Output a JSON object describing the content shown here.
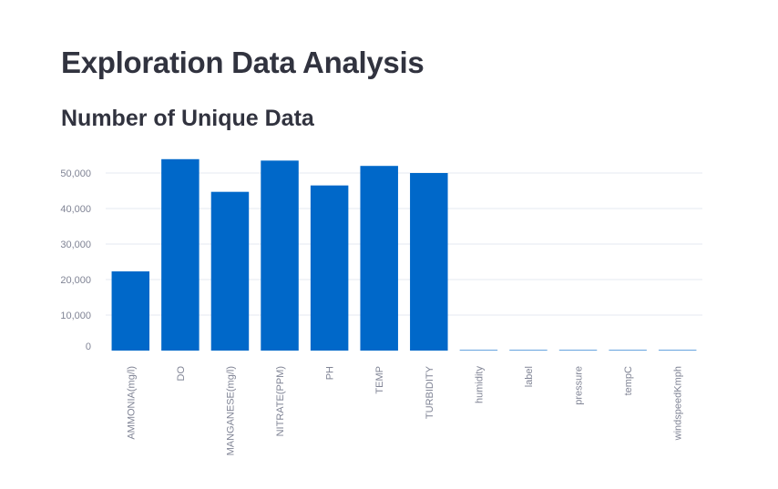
{
  "header": {
    "title": "Exploration Data Analysis",
    "subtitle": "Number of Unique Data"
  },
  "chart_data": {
    "type": "bar",
    "title": "",
    "xlabel": "",
    "ylabel": "",
    "categories": [
      "AMMONIA(mg/l)",
      "DO",
      "MANGANESE(mg/l)",
      "NITRATE(PPM)",
      "PH",
      "TEMP",
      "TURBIDITY",
      "humidity",
      "label",
      "pressure",
      "tempC",
      "windspeedKmph"
    ],
    "values": [
      22300,
      53900,
      44700,
      53500,
      46500,
      52000,
      50000,
      120,
      2,
      60,
      40,
      70
    ],
    "ylim": [
      0,
      58000
    ],
    "yticks": [
      0,
      10000,
      20000,
      30000,
      40000,
      50000
    ],
    "ytick_labels": [
      "0",
      "10,000",
      "20,000",
      "30,000",
      "40,000",
      "50,000"
    ],
    "grid": true,
    "legend": "none",
    "bar_color": "#0068c9",
    "grid_color": "#e6eaf1",
    "tick_color": "#808495"
  }
}
